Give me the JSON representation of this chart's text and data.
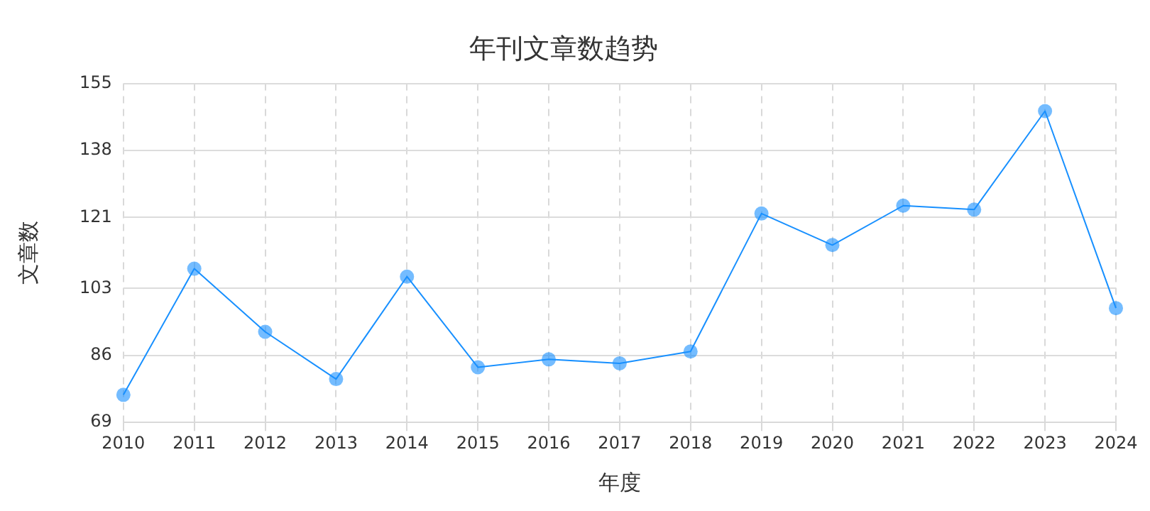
{
  "chart_data": {
    "type": "line",
    "title": "年刊文章数趋势",
    "xlabel": "年度",
    "ylabel": "文章数",
    "categories": [
      "2010",
      "2011",
      "2012",
      "2013",
      "2014",
      "2015",
      "2016",
      "2017",
      "2018",
      "2019",
      "2020",
      "2021",
      "2022",
      "2023",
      "2024"
    ],
    "series": [
      {
        "color": "#1890ff",
        "values": [
          76,
          108,
          92,
          80,
          106,
          83,
          85,
          84,
          87,
          122,
          114,
          124,
          123,
          148,
          98
        ]
      }
    ],
    "ylim": [
      69,
      155
    ],
    "yticks": [
      69,
      86,
      103,
      121,
      138,
      155
    ],
    "grid": true,
    "legend": false,
    "marker": "circle",
    "line_style": "solid"
  }
}
